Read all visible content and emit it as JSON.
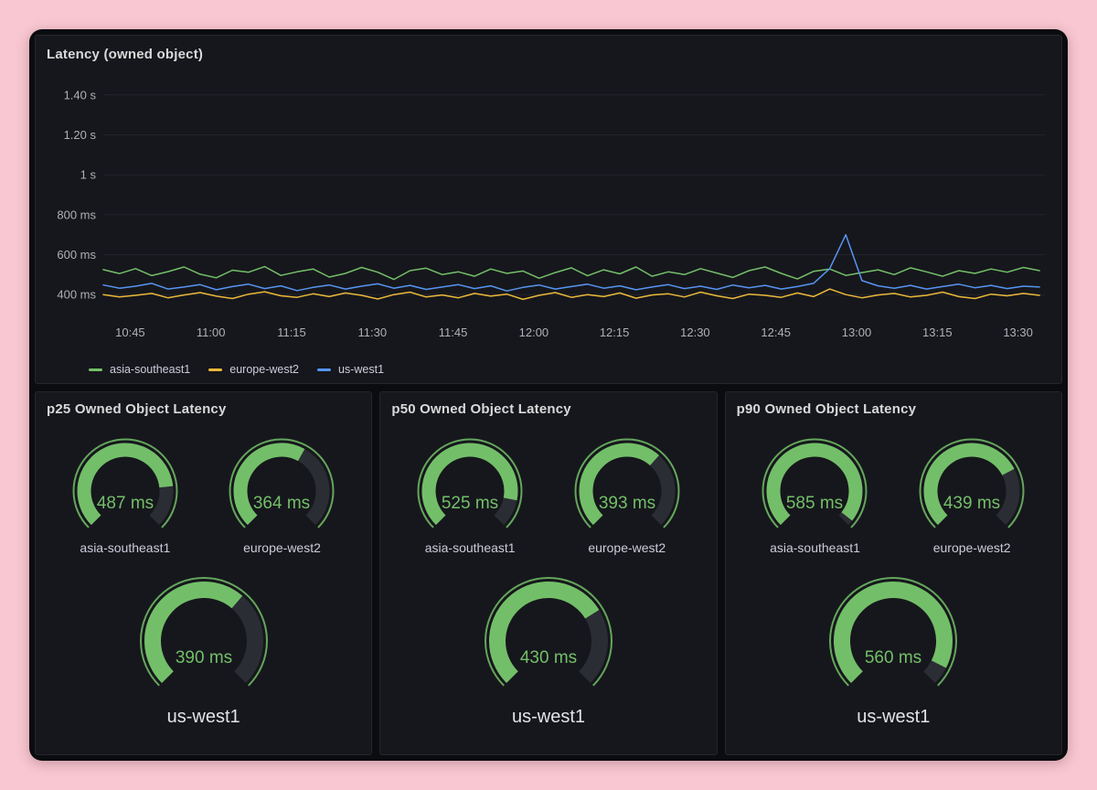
{
  "theme": {
    "page_bg": "#f8c7d1",
    "container_bg": "#0b0c0f",
    "panel_bg": "#16171c",
    "panel_border": "#24262c",
    "title_color": "#d8d9da",
    "axis_color": "#aeb1b7",
    "grid_color": "#23252c",
    "green": "#73bf69",
    "yellow": "#eab839",
    "blue": "#5794f2",
    "gauge_track": "#2b2d34",
    "label_color": "#ccccdc"
  },
  "chart_data": [
    {
      "type": "line",
      "title": "Latency (owned object)",
      "x_start": "10:40",
      "x_span_minutes": 175,
      "point_interval_minutes": 3,
      "x_ticks": [
        {
          "label": "10:45",
          "minute": 5
        },
        {
          "label": "11:00",
          "minute": 20
        },
        {
          "label": "11:15",
          "minute": 35
        },
        {
          "label": "11:30",
          "minute": 50
        },
        {
          "label": "11:45",
          "minute": 65
        },
        {
          "label": "12:00",
          "minute": 80
        },
        {
          "label": "12:15",
          "minute": 95
        },
        {
          "label": "12:30",
          "minute": 110
        },
        {
          "label": "12:45",
          "minute": 125
        },
        {
          "label": "13:00",
          "minute": 140
        },
        {
          "label": "13:15",
          "minute": 155
        },
        {
          "label": "13:30",
          "minute": 170
        }
      ],
      "ylim": [
        300,
        1500
      ],
      "y_ticks": [
        {
          "label": "400 ms",
          "value": 400
        },
        {
          "label": "600 ms",
          "value": 600
        },
        {
          "label": "800 ms",
          "value": 800
        },
        {
          "label": "1 s",
          "value": 1000
        },
        {
          "label": "1.20 s",
          "value": 1200
        },
        {
          "label": "1.40 s",
          "value": 1400
        }
      ],
      "unit": "ms",
      "grid": true,
      "legend_position": "bottom",
      "series": [
        {
          "name": "asia-southeast1",
          "color": "#73bf69",
          "values": [
            525,
            505,
            530,
            495,
            515,
            538,
            502,
            484,
            522,
            512,
            540,
            496,
            514,
            528,
            488,
            506,
            536,
            512,
            476,
            520,
            532,
            500,
            514,
            492,
            528,
            506,
            518,
            482,
            510,
            534,
            494,
            524,
            504,
            538,
            492,
            514,
            500,
            530,
            508,
            486,
            520,
            538,
            506,
            478,
            516,
            528,
            496,
            510,
            524,
            500,
            534,
            514,
            492,
            520,
            506,
            528,
            512,
            536,
            520
          ]
        },
        {
          "name": "europe-west2",
          "color": "#eab839",
          "values": [
            400,
            388,
            396,
            406,
            384,
            398,
            410,
            392,
            380,
            402,
            414,
            394,
            386,
            404,
            390,
            408,
            396,
            378,
            400,
            412,
            388,
            398,
            384,
            406,
            392,
            402,
            376,
            396,
            410,
            386,
            400,
            390,
            408,
            382,
            398,
            404,
            388,
            412,
            394,
            380,
            402,
            396,
            386,
            408,
            390,
            428,
            400,
            384,
            398,
            406,
            388,
            396,
            412,
            390,
            380,
            402,
            394,
            406,
            396
          ]
        },
        {
          "name": "us-west1",
          "color": "#5794f2",
          "values": [
            448,
            432,
            442,
            456,
            428,
            438,
            450,
            424,
            440,
            452,
            430,
            444,
            420,
            436,
            448,
            428,
            442,
            454,
            432,
            446,
            426,
            438,
            450,
            430,
            444,
            418,
            436,
            448,
            428,
            440,
            452,
            432,
            444,
            424,
            438,
            450,
            430,
            442,
            426,
            448,
            434,
            446,
            428,
            440,
            456,
            530,
            700,
            470,
            444,
            432,
            446,
            428,
            440,
            452,
            434,
            446,
            430,
            442,
            438
          ]
        }
      ]
    },
    {
      "type": "gauge",
      "title": "p25 Owned Object Latency",
      "min": 0,
      "max": 600,
      "unit": "ms",
      "gauges": [
        {
          "label": "asia-southeast1",
          "value": 487
        },
        {
          "label": "europe-west2",
          "value": 364
        },
        {
          "label": "us-west1",
          "value": 390
        }
      ]
    },
    {
      "type": "gauge",
      "title": "p50 Owned Object Latency",
      "min": 0,
      "max": 600,
      "unit": "ms",
      "gauges": [
        {
          "label": "asia-southeast1",
          "value": 525
        },
        {
          "label": "europe-west2",
          "value": 393
        },
        {
          "label": "us-west1",
          "value": 430
        }
      ]
    },
    {
      "type": "gauge",
      "title": "p90 Owned Object Latency",
      "min": 0,
      "max": 600,
      "unit": "ms",
      "gauges": [
        {
          "label": "asia-southeast1",
          "value": 585
        },
        {
          "label": "europe-west2",
          "value": 439
        },
        {
          "label": "us-west1",
          "value": 560
        }
      ]
    }
  ]
}
